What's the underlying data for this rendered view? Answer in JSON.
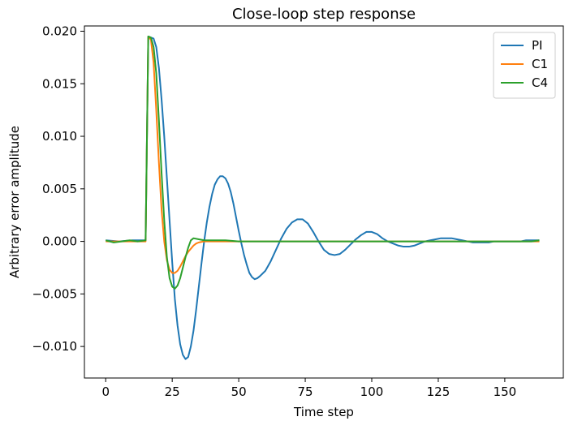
{
  "chart_data": {
    "type": "line",
    "title": "Close-loop step response",
    "xlabel": "Time step",
    "ylabel": "Arbitrary error amplitude",
    "xlim": [
      -8,
      172
    ],
    "ylim": [
      -0.013,
      0.0205
    ],
    "xticks": [
      0,
      25,
      50,
      75,
      100,
      125,
      150
    ],
    "xtick_labels": [
      "0",
      "25",
      "50",
      "75",
      "100",
      "125",
      "150"
    ],
    "yticks": [
      -0.01,
      -0.005,
      0.0,
      0.005,
      0.01,
      0.015,
      0.02
    ],
    "ytick_labels": [
      "−0.010",
      "−0.005",
      "0.000",
      "0.005",
      "0.010",
      "0.015",
      "0.020"
    ],
    "grid": false,
    "legend": "top-right",
    "series": [
      {
        "name": "PI",
        "color": "#1f77b4",
        "points": [
          [
            0,
            0.0001
          ],
          [
            5,
            0.0
          ],
          [
            10,
            0.0001
          ],
          [
            15,
            0.0001
          ],
          [
            16,
            0.0195
          ],
          [
            18,
            0.0193
          ],
          [
            19,
            0.0185
          ],
          [
            20,
            0.0165
          ],
          [
            21,
            0.0135
          ],
          [
            22,
            0.01
          ],
          [
            23,
            0.006
          ],
          [
            24,
            0.002
          ],
          [
            25,
            -0.002
          ],
          [
            26,
            -0.0055
          ],
          [
            27,
            -0.008
          ],
          [
            28,
            -0.0098
          ],
          [
            29,
            -0.0108
          ],
          [
            30,
            -0.0112
          ],
          [
            31,
            -0.011
          ],
          [
            32,
            -0.01
          ],
          [
            33,
            -0.0085
          ],
          [
            34,
            -0.0065
          ],
          [
            35,
            -0.0043
          ],
          [
            36,
            -0.0021
          ],
          [
            37,
            0.0
          ],
          [
            38,
            0.0018
          ],
          [
            39,
            0.0033
          ],
          [
            40,
            0.0045
          ],
          [
            41,
            0.0054
          ],
          [
            42,
            0.0059
          ],
          [
            43,
            0.0062
          ],
          [
            44,
            0.0062
          ],
          [
            45,
            0.006
          ],
          [
            46,
            0.0055
          ],
          [
            47,
            0.0047
          ],
          [
            48,
            0.0036
          ],
          [
            49,
            0.0023
          ],
          [
            50,
            0.001
          ],
          [
            51,
            -0.0002
          ],
          [
            52,
            -0.0013
          ],
          [
            53,
            -0.0022
          ],
          [
            54,
            -0.003
          ],
          [
            55,
            -0.0034
          ],
          [
            56,
            -0.0036
          ],
          [
            57,
            -0.0035
          ],
          [
            58,
            -0.0033
          ],
          [
            60,
            -0.0028
          ],
          [
            62,
            -0.0019
          ],
          [
            64,
            -0.0008
          ],
          [
            66,
            0.0003
          ],
          [
            68,
            0.0012
          ],
          [
            70,
            0.0018
          ],
          [
            72,
            0.0021
          ],
          [
            74,
            0.0021
          ],
          [
            76,
            0.0017
          ],
          [
            78,
            0.0009
          ],
          [
            80,
            0.0
          ],
          [
            82,
            -0.0008
          ],
          [
            84,
            -0.0012
          ],
          [
            86,
            -0.0013
          ],
          [
            88,
            -0.0012
          ],
          [
            90,
            -0.0008
          ],
          [
            92,
            -0.0003
          ],
          [
            94,
            0.0002
          ],
          [
            96,
            0.0006
          ],
          [
            98,
            0.0009
          ],
          [
            100,
            0.0009
          ],
          [
            102,
            0.0007
          ],
          [
            104,
            0.0003
          ],
          [
            106,
            0.0
          ],
          [
            108,
            -0.0002
          ],
          [
            110,
            -0.0004
          ],
          [
            112,
            -0.0005
          ],
          [
            114,
            -0.0005
          ],
          [
            116,
            -0.0004
          ],
          [
            118,
            -0.0002
          ],
          [
            120,
            0.0
          ],
          [
            122,
            0.0001
          ],
          [
            124,
            0.0002
          ],
          [
            126,
            0.0003
          ],
          [
            128,
            0.0003
          ],
          [
            130,
            0.0003
          ],
          [
            132,
            0.0002
          ],
          [
            134,
            0.0001
          ],
          [
            136,
            0.0
          ],
          [
            138,
            -0.0001
          ],
          [
            140,
            -0.0001
          ],
          [
            142,
            -0.0001
          ],
          [
            144,
            -0.0001
          ],
          [
            146,
            0.0
          ],
          [
            148,
            0.0
          ],
          [
            150,
            0.0
          ],
          [
            152,
            0.0
          ],
          [
            154,
            0.0
          ],
          [
            156,
            0.0
          ],
          [
            158,
            0.0001
          ],
          [
            160,
            0.0001
          ],
          [
            163,
            0.0001
          ]
        ]
      },
      {
        "name": "C1",
        "color": "#ff7f0e",
        "points": [
          [
            0,
            0.0
          ],
          [
            5,
            0.0
          ],
          [
            10,
            0.0
          ],
          [
            15,
            0.0
          ],
          [
            16,
            0.0195
          ],
          [
            17,
            0.0192
          ],
          [
            18,
            0.017
          ],
          [
            19,
            0.0125
          ],
          [
            20,
            0.0075
          ],
          [
            21,
            0.003
          ],
          [
            22,
            0.0
          ],
          [
            23,
            -0.0018
          ],
          [
            24,
            -0.0027
          ],
          [
            25,
            -0.003
          ],
          [
            26,
            -0.003
          ],
          [
            27,
            -0.0028
          ],
          [
            28,
            -0.0024
          ],
          [
            29,
            -0.0019
          ],
          [
            30,
            -0.0014
          ],
          [
            31,
            -0.001
          ],
          [
            32,
            -0.0007
          ],
          [
            33,
            -0.0004
          ],
          [
            34,
            -0.0002
          ],
          [
            35,
            -0.0001
          ],
          [
            37,
            0.0
          ],
          [
            40,
            0.0
          ],
          [
            45,
            0.0
          ],
          [
            50,
            0.0
          ],
          [
            55,
            0.0
          ],
          [
            60,
            0.0
          ],
          [
            70,
            0.0
          ],
          [
            80,
            0.0
          ],
          [
            90,
            0.0
          ],
          [
            100,
            0.0
          ],
          [
            110,
            0.0
          ],
          [
            120,
            0.0
          ],
          [
            130,
            0.0
          ],
          [
            140,
            0.0
          ],
          [
            150,
            0.0
          ],
          [
            160,
            0.0
          ],
          [
            163,
            0.0
          ]
        ]
      },
      {
        "name": "C4",
        "color": "#2ca02c",
        "points": [
          [
            0,
            0.0001
          ],
          [
            3,
            -0.0001
          ],
          [
            6,
            0.0
          ],
          [
            9,
            0.0001
          ],
          [
            12,
            0.0
          ],
          [
            15,
            0.0001
          ],
          [
            16,
            0.0195
          ],
          [
            17,
            0.0194
          ],
          [
            18,
            0.0185
          ],
          [
            19,
            0.016
          ],
          [
            20,
            0.0115
          ],
          [
            21,
            0.0065
          ],
          [
            22,
            0.002
          ],
          [
            23,
            -0.0015
          ],
          [
            24,
            -0.0035
          ],
          [
            25,
            -0.0043
          ],
          [
            26,
            -0.0045
          ],
          [
            27,
            -0.0042
          ],
          [
            28,
            -0.0035
          ],
          [
            29,
            -0.0025
          ],
          [
            30,
            -0.0015
          ],
          [
            31,
            -0.0006
          ],
          [
            32,
            0.0001
          ],
          [
            33,
            0.0003
          ],
          [
            35,
            0.0002
          ],
          [
            37,
            0.0001
          ],
          [
            40,
            0.0001
          ],
          [
            45,
            0.0001
          ],
          [
            50,
            0.0
          ],
          [
            55,
            0.0
          ],
          [
            60,
            0.0
          ],
          [
            70,
            0.0
          ],
          [
            80,
            0.0
          ],
          [
            90,
            0.0
          ],
          [
            100,
            0.0
          ],
          [
            110,
            0.0
          ],
          [
            120,
            0.0
          ],
          [
            130,
            0.0
          ],
          [
            140,
            0.0
          ],
          [
            150,
            0.0
          ],
          [
            160,
            0.0
          ],
          [
            163,
            0.0001
          ]
        ]
      }
    ]
  }
}
